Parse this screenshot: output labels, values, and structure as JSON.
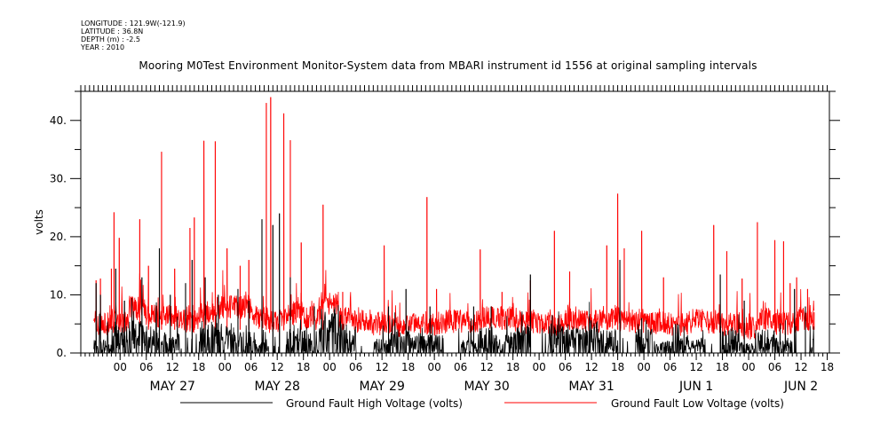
{
  "metadata": {
    "longitude": "LONGITUDE : 121.9W(-121.9)",
    "latitude": "LATITUDE : 36.8N",
    "depth": "DEPTH (m) : -2.5",
    "year": "YEAR : 2010"
  },
  "chart_data": {
    "type": "line",
    "title": "Mooring M0Test Environment Monitor-System data from MBARI instrument id 1556 at original sampling intervals",
    "ylabel": "volts",
    "xlabel": "",
    "ylim": [
      0,
      45
    ],
    "xlim_hours": [
      0,
      165
    ],
    "y_ticks": [
      0,
      10,
      20,
      30,
      40
    ],
    "y_tick_labels": [
      "0.",
      "10.",
      "20.",
      "30.",
      "40."
    ],
    "hour_ticks": [
      {
        "h": 6,
        "label": "00"
      },
      {
        "h": 12,
        "label": "06"
      },
      {
        "h": 18,
        "label": "12"
      },
      {
        "h": 24,
        "label": "18"
      },
      {
        "h": 30,
        "label": "00"
      },
      {
        "h": 36,
        "label": "06"
      },
      {
        "h": 42,
        "label": "12"
      },
      {
        "h": 48,
        "label": "18"
      },
      {
        "h": 54,
        "label": "00"
      },
      {
        "h": 60,
        "label": "06"
      },
      {
        "h": 66,
        "label": "12"
      },
      {
        "h": 72,
        "label": "18"
      },
      {
        "h": 78,
        "label": "00"
      },
      {
        "h": 84,
        "label": "06"
      },
      {
        "h": 90,
        "label": "12"
      },
      {
        "h": 96,
        "label": "18"
      },
      {
        "h": 102,
        "label": "00"
      },
      {
        "h": 108,
        "label": "06"
      },
      {
        "h": 114,
        "label": "12"
      },
      {
        "h": 120,
        "label": "18"
      },
      {
        "h": 126,
        "label": "00"
      },
      {
        "h": 132,
        "label": "06"
      },
      {
        "h": 138,
        "label": "12"
      },
      {
        "h": 144,
        "label": "18"
      },
      {
        "h": 150,
        "label": "00"
      },
      {
        "h": 156,
        "label": "06"
      },
      {
        "h": 162,
        "label": "12"
      },
      {
        "h": 168,
        "label": "18"
      }
    ],
    "day_labels": [
      {
        "h": 18,
        "label": "MAY 27"
      },
      {
        "h": 42,
        "label": "MAY 28"
      },
      {
        "h": 66,
        "label": "MAY 29"
      },
      {
        "h": 90,
        "label": "MAY 30"
      },
      {
        "h": 114,
        "label": "MAY 31"
      },
      {
        "h": 138,
        "label": "JUN  1"
      },
      {
        "h": 162,
        "label": "JUN  2"
      }
    ],
    "series": [
      {
        "name": "Ground Fault High Voltage (volts)",
        "color": "#000000",
        "baseline": [
          0,
          1.5,
          3.2,
          3.8,
          3.2,
          2.4,
          0,
          4.5,
          3.5,
          2.5,
          1.6,
          0,
          3.3,
          3.0,
          5.5,
          3.8,
          0,
          1.8,
          2.8,
          2.3,
          2.1,
          0,
          1.5,
          3.0,
          2.1,
          3.4,
          0,
          3.4,
          3.1,
          3.8,
          2.7,
          0,
          2.9,
          1.5,
          3.4,
          1.8,
          0,
          2.8,
          1.3,
          2.7,
          1.8,
          0,
          3.2,
          2.8,
          3.6,
          2.1,
          0
        ],
        "peaks": [
          {
            "h": 0.5,
            "v": 12
          },
          {
            "h": 1.5,
            "v": 10
          },
          {
            "h": 5.0,
            "v": 14.5
          },
          {
            "h": 7.0,
            "v": 9
          },
          {
            "h": 11.0,
            "v": 13
          },
          {
            "h": 15.0,
            "v": 18
          },
          {
            "h": 17.5,
            "v": 10
          },
          {
            "h": 21.0,
            "v": 12
          },
          {
            "h": 22.5,
            "v": 16
          },
          {
            "h": 25.5,
            "v": 13
          },
          {
            "h": 28.5,
            "v": 10
          },
          {
            "h": 33.0,
            "v": 11
          },
          {
            "h": 35.5,
            "v": 9
          },
          {
            "h": 38.5,
            "v": 23
          },
          {
            "h": 41.0,
            "v": 22
          },
          {
            "h": 42.5,
            "v": 24
          },
          {
            "h": 45.0,
            "v": 13
          },
          {
            "h": 50.5,
            "v": 8
          },
          {
            "h": 56.5,
            "v": 5
          },
          {
            "h": 67.5,
            "v": 8
          },
          {
            "h": 71.5,
            "v": 11
          },
          {
            "h": 77.0,
            "v": 8
          },
          {
            "h": 87.0,
            "v": 8
          },
          {
            "h": 91.0,
            "v": 8
          },
          {
            "h": 100.0,
            "v": 13.5
          },
          {
            "h": 105.0,
            "v": 6.5
          },
          {
            "h": 113.5,
            "v": 6
          },
          {
            "h": 120.5,
            "v": 16
          },
          {
            "h": 125.5,
            "v": 6
          },
          {
            "h": 143.5,
            "v": 13.5
          },
          {
            "h": 149.0,
            "v": 9
          },
          {
            "h": 160.5,
            "v": 11
          },
          {
            "h": 163.0,
            "v": 8
          }
        ]
      },
      {
        "name": "Ground Fault Low Voltage (volts)",
        "color": "#ff0000",
        "baseline": [
          6,
          4.7,
          5.1,
          7.3,
          5.8,
          5.9,
          5,
          6.4,
          7.5,
          7.5,
          5.7,
          5,
          6.4,
          5.6,
          8.2,
          5.4,
          5,
          4.6,
          4.2,
          4.8,
          4.6,
          5,
          4.8,
          5.6,
          5.6,
          4.9,
          5,
          4.5,
          5.2,
          5.0,
          5.6,
          5,
          4.6,
          4.8,
          4.6,
          5.1,
          5,
          4.6,
          3.9,
          5.2,
          4.7,
          5,
          5.3,
          4.7,
          6.0,
          4.8,
          6
        ],
        "peaks": [
          {
            "h": 0.5,
            "v": 12.5
          },
          {
            "h": 1.5,
            "v": 12.8
          },
          {
            "h": 4.0,
            "v": 14.5
          },
          {
            "h": 4.6,
            "v": 24.2
          },
          {
            "h": 5.8,
            "v": 19.8
          },
          {
            "h": 10.5,
            "v": 23
          },
          {
            "h": 12.5,
            "v": 15
          },
          {
            "h": 15.5,
            "v": 34.6
          },
          {
            "h": 18.5,
            "v": 14.5
          },
          {
            "h": 22.0,
            "v": 21.5
          },
          {
            "h": 23.0,
            "v": 23.3
          },
          {
            "h": 25.2,
            "v": 36.5
          },
          {
            "h": 27.8,
            "v": 36.4
          },
          {
            "h": 30.5,
            "v": 18
          },
          {
            "h": 33.5,
            "v": 15
          },
          {
            "h": 35.5,
            "v": 16
          },
          {
            "h": 39.5,
            "v": 43
          },
          {
            "h": 40.5,
            "v": 44
          },
          {
            "h": 43.5,
            "v": 41.2
          },
          {
            "h": 45.0,
            "v": 36.6
          },
          {
            "h": 47.5,
            "v": 19
          },
          {
            "h": 52.5,
            "v": 25.5
          },
          {
            "h": 57.0,
            "v": 10.5
          },
          {
            "h": 66.5,
            "v": 18.5
          },
          {
            "h": 76.3,
            "v": 26.8
          },
          {
            "h": 78.5,
            "v": 11
          },
          {
            "h": 88.5,
            "v": 17.8
          },
          {
            "h": 93.5,
            "v": 10.5
          },
          {
            "h": 100.0,
            "v": 12.5
          },
          {
            "h": 105.5,
            "v": 21
          },
          {
            "h": 109.0,
            "v": 14
          },
          {
            "h": 117.5,
            "v": 18.5
          },
          {
            "h": 120.0,
            "v": 27.4
          },
          {
            "h": 121.5,
            "v": 18
          },
          {
            "h": 125.5,
            "v": 21
          },
          {
            "h": 130.5,
            "v": 13
          },
          {
            "h": 142.0,
            "v": 22
          },
          {
            "h": 145.0,
            "v": 17.5
          },
          {
            "h": 148.5,
            "v": 12.8
          },
          {
            "h": 152.0,
            "v": 22.5
          },
          {
            "h": 156.0,
            "v": 19.4
          },
          {
            "h": 158.0,
            "v": 19.2
          },
          {
            "h": 159.5,
            "v": 12
          },
          {
            "h": 161.0,
            "v": 13
          },
          {
            "h": 163.5,
            "v": 11
          },
          {
            "h": 165.0,
            "v": 7
          }
        ]
      }
    ]
  }
}
